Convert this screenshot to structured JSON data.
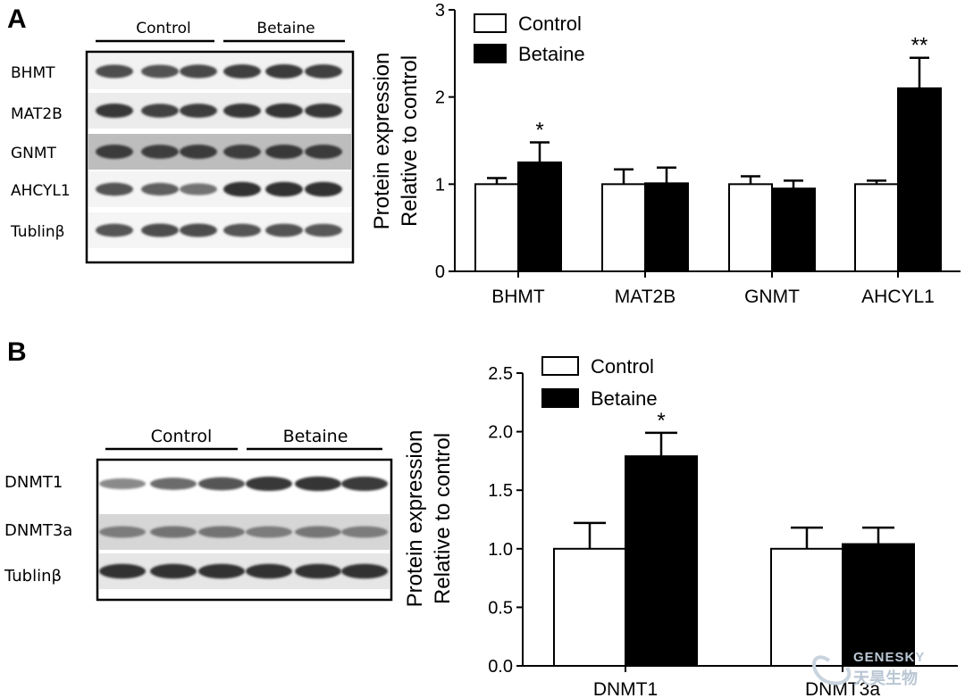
{
  "panels": {
    "a": {
      "letter": "A",
      "blot": {
        "groups": [
          "Control",
          "Betaine"
        ],
        "lanes_per_group": 3,
        "rows": [
          {
            "label": "BHMT",
            "strength": [
              0.75,
              0.72,
              0.78,
              0.85,
              0.88,
              0.84
            ]
          },
          {
            "label": "MAT2B",
            "strength": [
              0.9,
              0.82,
              0.86,
              0.9,
              0.92,
              0.9
            ]
          },
          {
            "label": "GNMT",
            "strength": [
              0.88,
              0.86,
              0.88,
              0.87,
              0.9,
              0.88
            ]
          },
          {
            "label": "AHCYL1",
            "strength": [
              0.7,
              0.62,
              0.5,
              0.95,
              0.95,
              0.95
            ]
          },
          {
            "label": "Tublinβ",
            "strength": [
              0.7,
              0.75,
              0.75,
              0.7,
              0.72,
              0.68
            ]
          }
        ]
      }
    },
    "b": {
      "letter": "B",
      "blot": {
        "groups": [
          "Control",
          "Betaine"
        ],
        "lanes_per_group": 3,
        "rows": [
          {
            "label": "DNMT1",
            "strength": [
              0.35,
              0.55,
              0.7,
              0.9,
              0.92,
              0.88
            ]
          },
          {
            "label": "DNMT3a",
            "strength": [
              0.45,
              0.5,
              0.5,
              0.45,
              0.48,
              0.45
            ]
          },
          {
            "label": "Tublinβ",
            "strength": [
              0.95,
              0.95,
              0.95,
              0.95,
              0.95,
              0.95
            ]
          }
        ]
      }
    }
  },
  "chart_data": [
    {
      "type": "bar",
      "ylabel": [
        "Protein expression",
        "Relative to control"
      ],
      "categories": [
        "BHMT",
        "MAT2B",
        "GNMT",
        "AHCYL1"
      ],
      "series": [
        {
          "name": "Control",
          "values": [
            1.0,
            1.0,
            1.0,
            1.0
          ],
          "errors": [
            0.07,
            0.17,
            0.09,
            0.04
          ]
        },
        {
          "name": "Betaine",
          "values": [
            1.25,
            1.01,
            0.95,
            2.1
          ],
          "errors": [
            0.23,
            0.18,
            0.09,
            0.35
          ]
        }
      ],
      "significance": [
        "*",
        "",
        "",
        "**"
      ],
      "ylim": [
        0,
        3
      ],
      "yticks": [
        "0",
        "1",
        "2",
        "3"
      ],
      "legend": "top-left",
      "colors": {
        "Control": "#ffffff",
        "Betaine": "#000000"
      }
    },
    {
      "type": "bar",
      "ylabel": [
        "Protein expression",
        "Relative to control"
      ],
      "categories": [
        "DNMT1",
        "DNMT3a"
      ],
      "series": [
        {
          "name": "Control",
          "values": [
            1.0,
            1.0
          ],
          "errors": [
            0.22,
            0.18
          ]
        },
        {
          "name": "Betaine",
          "values": [
            1.79,
            1.04
          ],
          "errors": [
            0.2,
            0.14
          ]
        }
      ],
      "significance": [
        "*",
        ""
      ],
      "ylim": [
        0,
        2.5
      ],
      "yticks": [
        "0.0",
        "0.5",
        "1.0",
        "1.5",
        "2.0",
        "2.5"
      ],
      "legend": "top-left",
      "colors": {
        "Control": "#ffffff",
        "Betaine": "#000000"
      }
    }
  ],
  "watermark": {
    "line1": "GENESKY",
    "line2": "天昊生物"
  }
}
